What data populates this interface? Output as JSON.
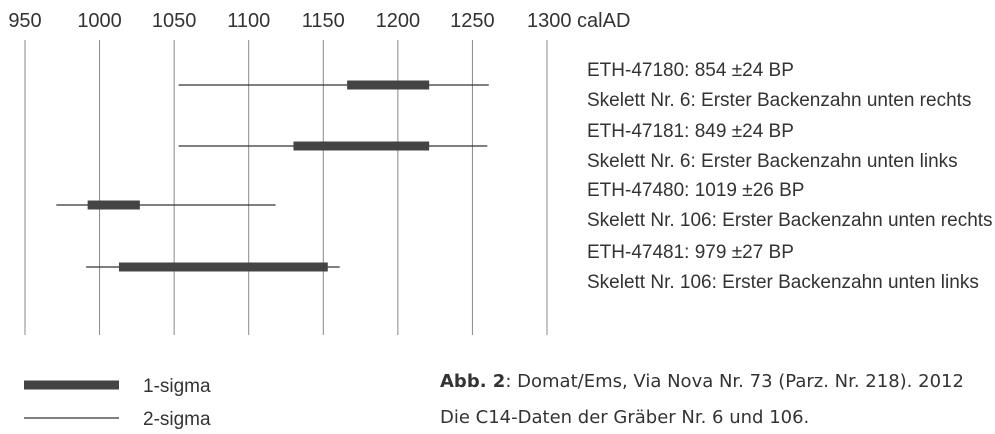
{
  "chart_data": {
    "type": "range",
    "x_unit": "calAD",
    "xlim": [
      950,
      1300
    ],
    "ticks": [
      950,
      1000,
      1050,
      1100,
      1150,
      1200,
      1250,
      1300
    ],
    "tick_labels": [
      "950",
      "1000",
      "1050",
      "1100",
      "1150",
      "1200",
      "1250",
      "1300 calAD"
    ],
    "grid": "vertical",
    "series": [
      {
        "id": "ETH-47180: 854 ±24 BP",
        "description": "Skelett Nr. 6: Erster Backenzahn unten rechts",
        "sigma1": [
          1166,
          1221
        ],
        "sigma2": [
          1053,
          1261
        ]
      },
      {
        "id": "ETH-47181: 849 ±24 BP",
        "description": "Skelett Nr. 6: Erster Backenzahn unten links",
        "sigma1": [
          1130,
          1221
        ],
        "sigma2": [
          1053,
          1260
        ]
      },
      {
        "id": "ETH-47480: 1019 ±26 BP",
        "description": "Skelett Nr. 106: Erster Backenzahn unten rechts",
        "sigma1": [
          992,
          1027
        ],
        "sigma2": [
          971,
          1118
        ]
      },
      {
        "id": "ETH-47481: 979 ±27 BP",
        "description": "Skelett Nr. 106: Erster Backenzahn unten links",
        "sigma1": [
          1013,
          1153
        ],
        "sigma2": [
          991,
          1161
        ]
      }
    ],
    "legend": [
      {
        "key": "sigma1",
        "label": "1-sigma"
      },
      {
        "key": "sigma2",
        "label": "2-sigma"
      }
    ],
    "legend_position": "bottom-left"
  },
  "caption": {
    "bold": "Abb. 2",
    "line1_rest": ": Domat/Ems, Via Nova Nr. 73 (Parz. Nr. 218). 2012",
    "line2": "Die C14-Daten der Gräber Nr. 6 und 106."
  },
  "colors": {
    "axis": "#888888",
    "sigma1": "#444444",
    "sigma2": "#333333",
    "text": "#333333"
  }
}
